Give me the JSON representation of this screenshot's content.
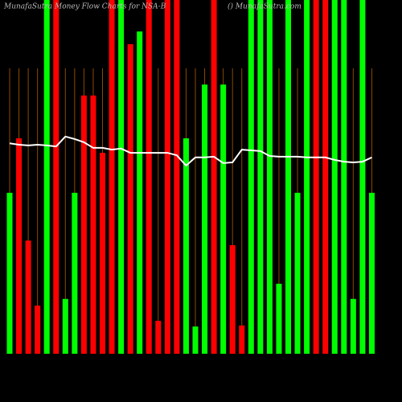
{
  "chart_data": {
    "type": "bar",
    "title": "MunafaSutra Money Flow Charts for NSA-B",
    "subtitle": "() MunafaSutra.com",
    "ylim": [
      0,
      100
    ],
    "values": [
      45.5,
      60.9,
      32,
      13.6,
      100,
      100,
      15.5,
      45.5,
      73,
      73,
      56.8,
      100,
      100,
      87.5,
      91.1,
      100,
      9.3,
      100,
      100,
      60.9,
      7.7,
      76.1,
      100,
      76.1,
      30.7,
      8,
      100,
      100,
      100,
      19.8,
      100,
      45.5,
      100,
      100,
      100,
      100,
      100,
      15.5,
      100,
      45.5
    ],
    "colors": [
      "#00ff00",
      "#ff0000",
      "#ff0000",
      "#ff0000",
      "#00ff00",
      "#ff0000",
      "#00ff00",
      "#00ff00",
      "#ff0000",
      "#ff0000",
      "#ff0000",
      "#ff0000",
      "#00ff00",
      "#ff0000",
      "#00ff00",
      "#ff0000",
      "#ff0000",
      "#ff0000",
      "#ff0000",
      "#00ff00",
      "#00ff00",
      "#00ff00",
      "#ff0000",
      "#00ff00",
      "#ff0000",
      "#ff0000",
      "#00ff00",
      "#00ff00",
      "#00ff00",
      "#00ff00",
      "#00ff00",
      "#00ff00",
      "#00ff00",
      "#ff0000",
      "#ff0000",
      "#00ff00",
      "#00ff00",
      "#00ff00",
      "#00ff00",
      "#00ff00"
    ],
    "line": {
      "color": "#ffffff",
      "values": [
        59.5,
        59.1,
        58.9,
        59.1,
        58.9,
        58.6,
        61.4,
        60.7,
        59.8,
        58.2,
        58.2,
        57.7,
        58,
        56.8,
        56.8,
        56.8,
        56.8,
        56.8,
        56.1,
        53.2,
        55.5,
        55.5,
        55.7,
        53.9,
        54.1,
        57.7,
        57.5,
        57.3,
        55.9,
        55.7,
        55.7,
        55.7,
        55.5,
        55.5,
        55.5,
        54.8,
        54.3,
        54.1,
        54.3,
        55.5
      ]
    }
  }
}
